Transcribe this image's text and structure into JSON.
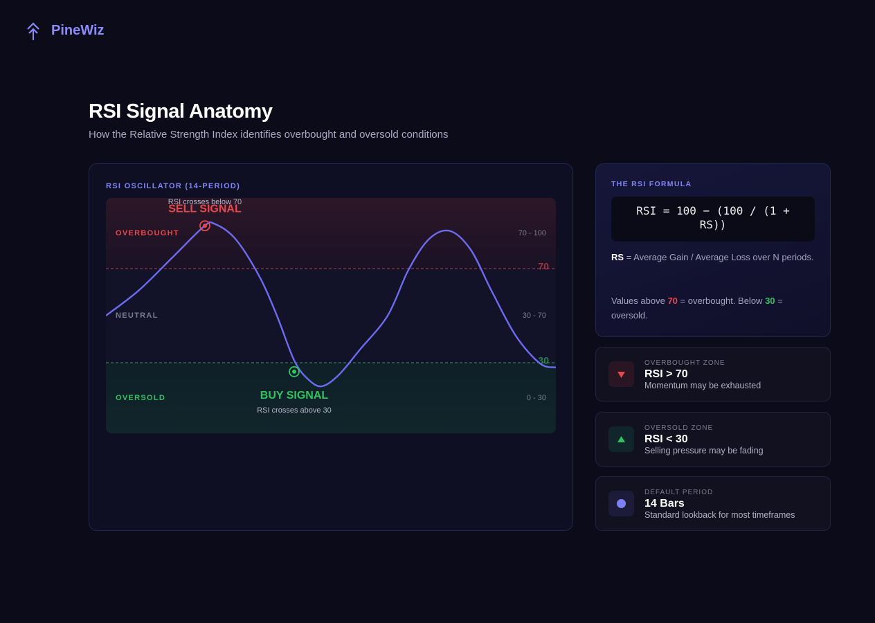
{
  "brand": "PineWiz",
  "header": {
    "title": "RSI Signal Anatomy",
    "subtitle": "How the Relative Strength Index identifies overbought and oversold conditions"
  },
  "chart_data": {
    "type": "line",
    "title": "RSI OSCILLATOR (14-PERIOD)",
    "x": [
      0,
      4.7,
      9.7,
      14.2,
      15.7,
      18.7,
      22.2,
      24.7,
      27.2,
      29.2,
      31.2,
      33.7,
      36.7,
      40.7,
      43.7,
      46.7,
      49.7,
      52.7,
      55.7,
      59.2,
      62.7,
      65
    ],
    "values": [
      50,
      60.6,
      75,
      88,
      89,
      82.6,
      66.5,
      50,
      31,
      23,
      20,
      25,
      35.6,
      50,
      69.4,
      82.6,
      86,
      78,
      60.6,
      41.5,
      29.7,
      28
    ],
    "color": "#6c6cf0",
    "xlim": [
      0,
      65
    ],
    "ylim": [
      0,
      100
    ],
    "thresholds": [
      70,
      30
    ],
    "threshold_colors": [
      "#b8424a",
      "#2f9e5a"
    ],
    "zones": [
      {
        "label": "OVERBOUGHT",
        "range": "70 - 100",
        "color": "#e5484d"
      },
      {
        "label": "NEUTRAL",
        "range": "30 - 70",
        "color": "#7a7a92"
      },
      {
        "label": "OVERSOLD",
        "range": "0 - 30",
        "color": "#2fc45e"
      }
    ],
    "signals": [
      {
        "label": "SELL SIGNAL",
        "note": "RSI crosses below 70",
        "x": 14.3,
        "y": 88.2,
        "color": "#e5484d"
      },
      {
        "label": "BUY SIGNAL",
        "note": "RSI crosses above 30",
        "x": 27.2,
        "y": 26.2,
        "color": "#2fc45e"
      }
    ]
  },
  "formula": {
    "heading": "THE RSI FORMULA",
    "expression": "RSI = 100 − (100 / (1 + RS))",
    "term": "RS",
    "definition": "= Average Gain / Average Loss over N periods.",
    "note": [
      "Values above",
      "70",
      "= overbought. Below",
      "30",
      "= oversold."
    ]
  },
  "stats": [
    {
      "label": "OVERBOUGHT ZONE",
      "title": "RSI > 70",
      "description": "Momentum may be exhausted"
    },
    {
      "label": "OVERSOLD ZONE",
      "title": "RSI < 30",
      "description": "Selling pressure may be fading"
    },
    {
      "label": "DEFAULT PERIOD",
      "title": "14 Bars",
      "description": "Standard lookback for most timeframes"
    }
  ]
}
